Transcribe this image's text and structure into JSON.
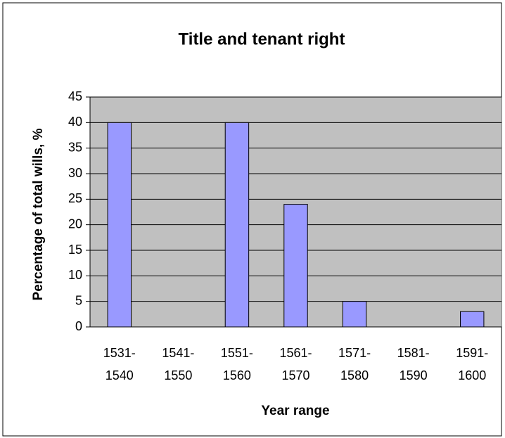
{
  "chart_data": {
    "type": "bar",
    "title": "Title and tenant right",
    "x_label": "Year range",
    "y_label": "Percentage of total wills, %",
    "categories": [
      "1531-1540",
      "1541-1550",
      "1551-1560",
      "1561-1570",
      "1571-1580",
      "1581-1590",
      "1591-1600"
    ],
    "values": [
      40,
      0,
      40,
      24,
      5,
      0,
      3
    ],
    "color": "#9999ff",
    "ylim": [
      0,
      45
    ],
    "yticks": [
      0,
      5,
      10,
      15,
      20,
      25,
      30,
      35,
      40,
      45
    ],
    "grid": true
  }
}
